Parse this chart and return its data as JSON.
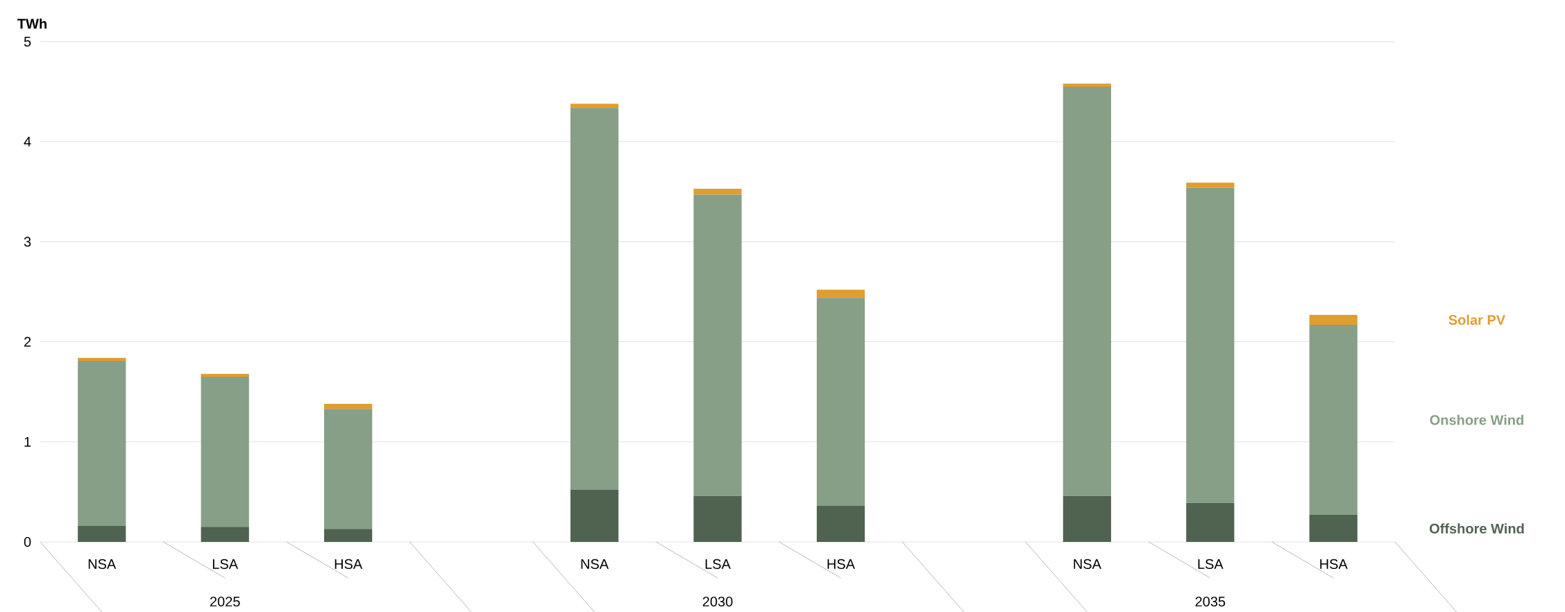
{
  "chart_data": {
    "type": "bar",
    "stacked": true,
    "ylabel": "TWh",
    "categories": [
      "NSA",
      "LSA",
      "HSA",
      null,
      "NSA",
      "LSA",
      "HSA",
      null,
      "NSA",
      "LSA",
      "HSA"
    ],
    "series": [
      {
        "name": "Offshore Wind",
        "color": "#4f6350",
        "values": [
          0.16,
          0.15,
          0.13,
          null,
          0.52,
          0.46,
          0.36,
          null,
          0.46,
          0.39,
          0.27
        ]
      },
      {
        "name": "Onshore Wind",
        "color": "#869f86",
        "values": [
          1.65,
          1.5,
          1.2,
          null,
          3.82,
          3.01,
          2.08,
          null,
          4.09,
          3.15,
          1.9
        ]
      },
      {
        "name": "Solar PV",
        "color": "#e29d2f",
        "values": [
          0.03,
          0.03,
          0.05,
          null,
          0.04,
          0.06,
          0.08,
          null,
          0.03,
          0.05,
          0.1
        ]
      }
    ],
    "annotations": [
      "2025",
      "2030",
      "2035"
    ],
    "ylim": [
      0,
      5
    ],
    "yticks": [
      0,
      1,
      2,
      3,
      4,
      5
    ],
    "grid": "y",
    "legend": "right"
  }
}
